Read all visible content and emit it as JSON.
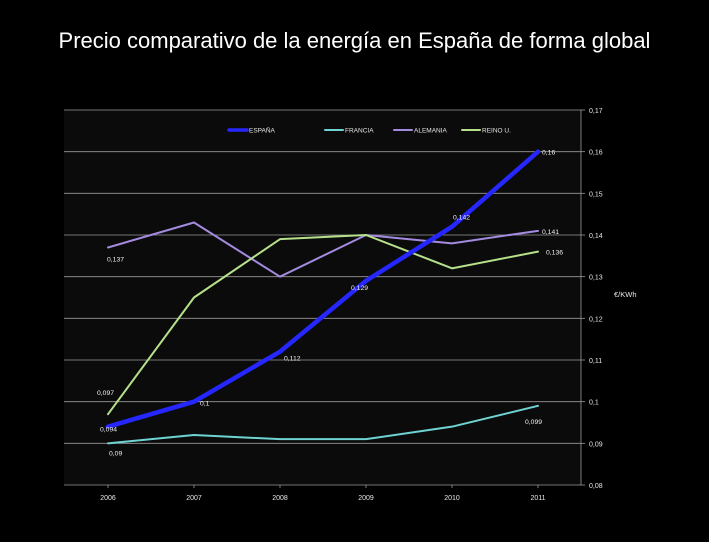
{
  "slide": {
    "title": "Precio comparativo de la energía en España de forma global"
  },
  "colors": {
    "background": "#000000",
    "plot_background": "#0b0b0b",
    "grid": "#9a9a9a",
    "text": "#e6e6e6"
  },
  "chart_data": {
    "type": "line",
    "title": "",
    "xlabel": "",
    "ylabel": "€/KWh",
    "categories": [
      "2006",
      "2007",
      "2008",
      "2009",
      "2010",
      "2011"
    ],
    "ylim": [
      0.08,
      0.17
    ],
    "yticks": [
      0.08,
      0.09,
      0.1,
      0.11,
      0.12,
      0.13,
      0.14,
      0.15,
      0.16,
      0.17
    ],
    "ytick_labels": [
      "0,08",
      "0,09",
      "0,1",
      "0,11",
      "0,12",
      "0,13",
      "0,14",
      "0,15",
      "0,16",
      "0,17"
    ],
    "grid": true,
    "legend_position": "top-center",
    "series": [
      {
        "name": "ESPAÑA",
        "color": "#2626ff",
        "width": 4.5,
        "values": [
          0.094,
          0.1,
          0.112,
          0.129,
          0.142,
          0.16
        ]
      },
      {
        "name": "FRANCIA",
        "color": "#6fd3d3",
        "width": 2,
        "values": [
          0.09,
          0.092,
          0.091,
          0.091,
          0.094,
          0.099
        ]
      },
      {
        "name": "ALEMANIA",
        "color": "#a48be0",
        "width": 2,
        "values": [
          0.137,
          0.143,
          0.13,
          0.14,
          0.138,
          0.141
        ]
      },
      {
        "name": "REINO U.",
        "color": "#b6e08a",
        "width": 2,
        "values": [
          0.097,
          0.125,
          0.139,
          0.14,
          0.132,
          0.136
        ]
      }
    ],
    "annotations": [
      {
        "text": "0,094",
        "x": 0,
        "y": 0.094
      },
      {
        "text": "0,1",
        "x": 1,
        "y": 0.1
      },
      {
        "text": "0,112",
        "x": 2,
        "y": 0.112
      },
      {
        "text": "0,129",
        "x": 3,
        "y": 0.129
      },
      {
        "text": "0,142",
        "x": 4,
        "y": 0.142
      },
      {
        "text": "0,16",
        "x": 5,
        "y": 0.16
      },
      {
        "text": "0,09",
        "x": 0,
        "y": 0.09
      },
      {
        "text": "0,099",
        "x": 5,
        "y": 0.099
      },
      {
        "text": "0,137",
        "x": 0,
        "y": 0.137
      },
      {
        "text": "0,141",
        "x": 5,
        "y": 0.141
      },
      {
        "text": "0,097",
        "x": 0,
        "y": 0.097
      },
      {
        "text": "0,136",
        "x": 5,
        "y": 0.136
      }
    ]
  }
}
